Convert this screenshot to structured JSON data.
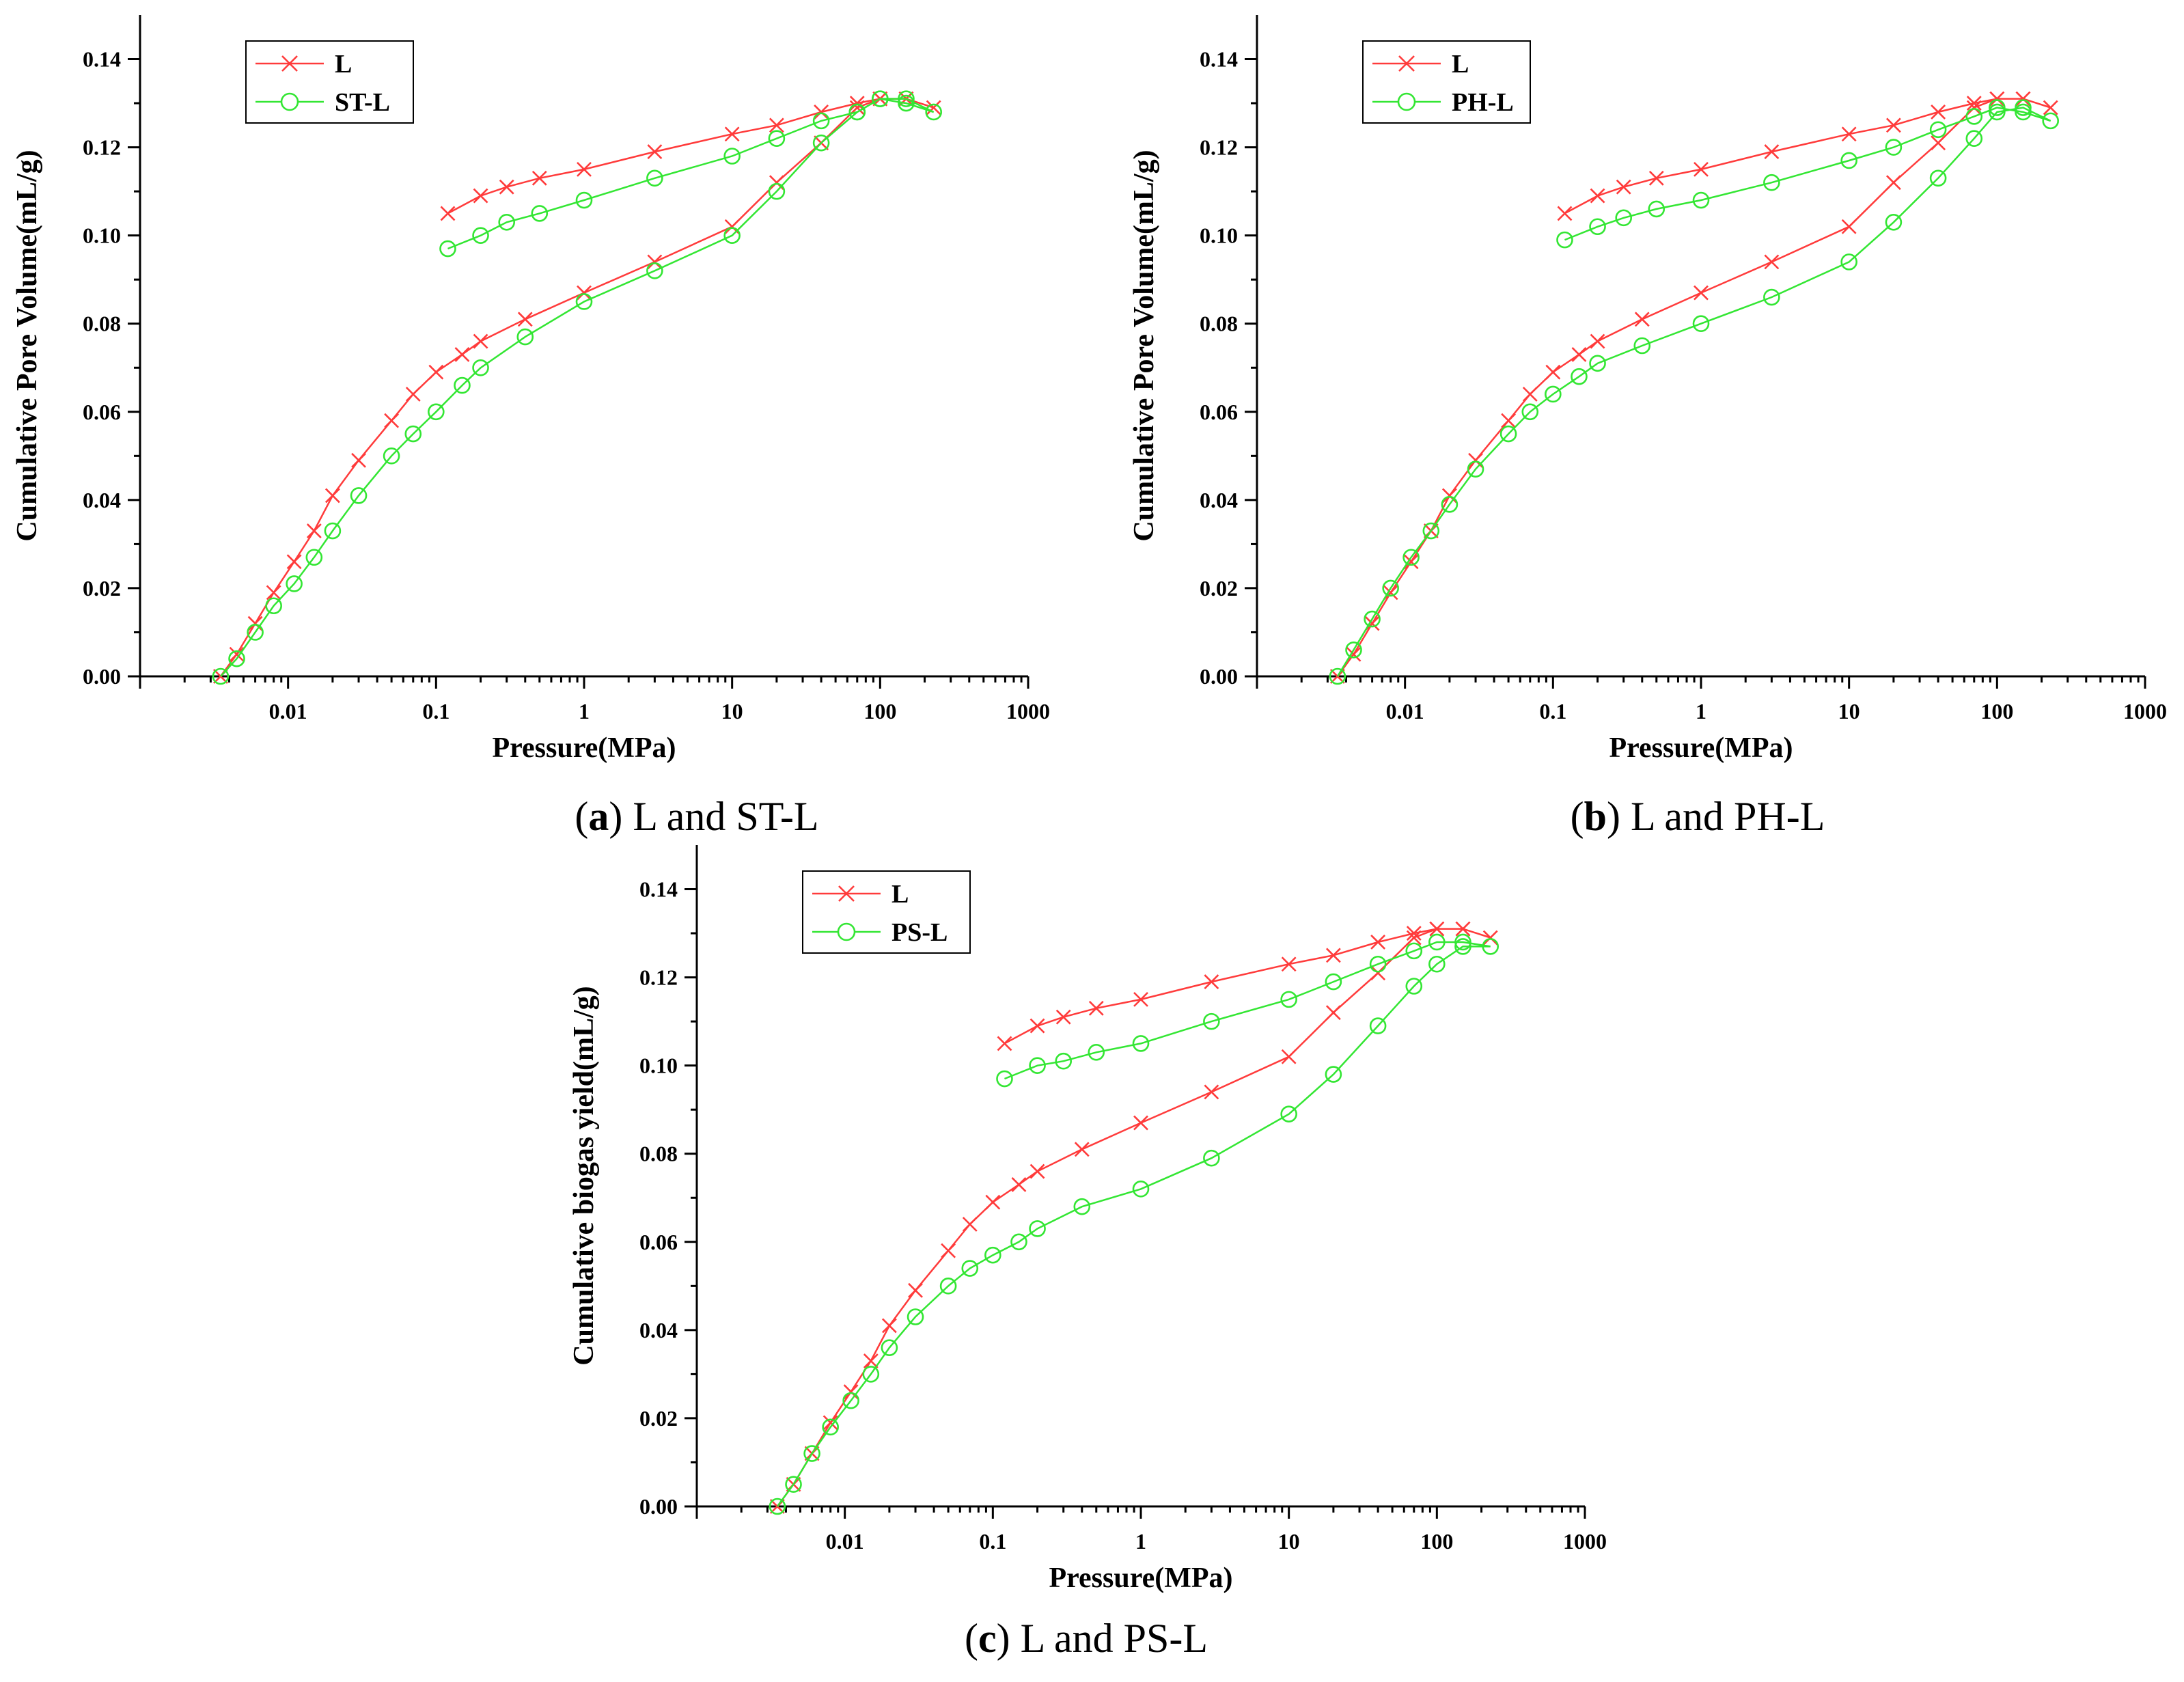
{
  "colors": {
    "L": "#ff3b3b",
    "secondary": "#33e633",
    "axis": "#000000"
  },
  "chart_data": [
    {
      "id": "a",
      "type": "scatter",
      "caption_letter": "a",
      "caption_text": " L and ST-L",
      "xlabel": "Pressure(MPa)",
      "ylabel": "Cumulative Pore Volume(mL/g)",
      "xscale": "log",
      "xlim": [
        0.001,
        1000
      ],
      "ylim": [
        0,
        0.15
      ],
      "xticks": [
        "0.01",
        "0.1",
        "1",
        "10",
        "100",
        "1000"
      ],
      "yticks": [
        "0.00",
        "0.02",
        "0.04",
        "0.06",
        "0.08",
        "0.10",
        "0.12",
        "0.14"
      ],
      "legend": [
        "L",
        "ST-L"
      ],
      "legend_position": "top-left",
      "series": [
        {
          "name": "L",
          "marker": "x",
          "intrusion": [
            [
              0.0035,
              0
            ],
            [
              0.0045,
              0.005
            ],
            [
              0.006,
              0.012
            ],
            [
              0.008,
              0.019
            ],
            [
              0.011,
              0.026
            ],
            [
              0.015,
              0.033
            ],
            [
              0.02,
              0.041
            ],
            [
              0.03,
              0.049
            ],
            [
              0.05,
              0.058
            ],
            [
              0.07,
              0.064
            ],
            [
              0.1,
              0.069
            ],
            [
              0.15,
              0.073
            ],
            [
              0.2,
              0.076
            ],
            [
              0.4,
              0.081
            ],
            [
              1,
              0.087
            ],
            [
              3,
              0.094
            ],
            [
              10,
              0.102
            ],
            [
              20,
              0.112
            ],
            [
              40,
              0.121
            ],
            [
              70,
              0.129
            ],
            [
              100,
              0.131
            ],
            [
              150,
              0.131
            ],
            [
              230,
              0.129
            ]
          ],
          "extrusion": [
            [
              230,
              0.129
            ],
            [
              150,
              0.131
            ],
            [
              100,
              0.131
            ],
            [
              70,
              0.13
            ],
            [
              40,
              0.128
            ],
            [
              20,
              0.125
            ],
            [
              10,
              0.123
            ],
            [
              3,
              0.119
            ],
            [
              1,
              0.115
            ],
            [
              0.5,
              0.113
            ],
            [
              0.3,
              0.111
            ],
            [
              0.2,
              0.109
            ],
            [
              0.12,
              0.105
            ]
          ]
        },
        {
          "name": "ST-L",
          "marker": "o",
          "intrusion": [
            [
              0.0035,
              0
            ],
            [
              0.0045,
              0.004
            ],
            [
              0.006,
              0.01
            ],
            [
              0.008,
              0.016
            ],
            [
              0.011,
              0.021
            ],
            [
              0.015,
              0.027
            ],
            [
              0.02,
              0.033
            ],
            [
              0.03,
              0.041
            ],
            [
              0.05,
              0.05
            ],
            [
              0.07,
              0.055
            ],
            [
              0.1,
              0.06
            ],
            [
              0.15,
              0.066
            ],
            [
              0.2,
              0.07
            ],
            [
              0.4,
              0.077
            ],
            [
              1,
              0.085
            ],
            [
              3,
              0.092
            ],
            [
              10,
              0.1
            ],
            [
              20,
              0.11
            ],
            [
              40,
              0.121
            ],
            [
              70,
              0.128
            ],
            [
              100,
              0.131
            ],
            [
              150,
              0.131
            ],
            [
              230,
              0.128
            ]
          ],
          "extrusion": [
            [
              230,
              0.128
            ],
            [
              150,
              0.13
            ],
            [
              100,
              0.131
            ],
            [
              70,
              0.128
            ],
            [
              40,
              0.126
            ],
            [
              20,
              0.122
            ],
            [
              10,
              0.118
            ],
            [
              3,
              0.113
            ],
            [
              1,
              0.108
            ],
            [
              0.5,
              0.105
            ],
            [
              0.3,
              0.103
            ],
            [
              0.2,
              0.1
            ],
            [
              0.12,
              0.097
            ]
          ]
        }
      ]
    },
    {
      "id": "b",
      "type": "scatter",
      "caption_letter": "b",
      "caption_text": " L and PH-L",
      "xlabel": "Pressure(MPa)",
      "ylabel": "Cumulative Pore Volume(mL/g)",
      "xscale": "log",
      "xlim": [
        0.001,
        1000
      ],
      "ylim": [
        0,
        0.15
      ],
      "xticks": [
        "0.01",
        "0.1",
        "1",
        "10",
        "100",
        "1000"
      ],
      "yticks": [
        "0.00",
        "0.02",
        "0.04",
        "0.06",
        "0.08",
        "0.10",
        "0.12",
        "0.14"
      ],
      "legend": [
        "L",
        "PH-L"
      ],
      "legend_position": "top-left",
      "series": [
        {
          "name": "L",
          "marker": "x",
          "intrusion": [
            [
              0.0035,
              0
            ],
            [
              0.0045,
              0.005
            ],
            [
              0.006,
              0.012
            ],
            [
              0.008,
              0.019
            ],
            [
              0.011,
              0.026
            ],
            [
              0.015,
              0.033
            ],
            [
              0.02,
              0.041
            ],
            [
              0.03,
              0.049
            ],
            [
              0.05,
              0.058
            ],
            [
              0.07,
              0.064
            ],
            [
              0.1,
              0.069
            ],
            [
              0.15,
              0.073
            ],
            [
              0.2,
              0.076
            ],
            [
              0.4,
              0.081
            ],
            [
              1,
              0.087
            ],
            [
              3,
              0.094
            ],
            [
              10,
              0.102
            ],
            [
              20,
              0.112
            ],
            [
              40,
              0.121
            ],
            [
              70,
              0.129
            ],
            [
              100,
              0.131
            ],
            [
              150,
              0.131
            ],
            [
              230,
              0.129
            ]
          ],
          "extrusion": [
            [
              230,
              0.129
            ],
            [
              150,
              0.131
            ],
            [
              100,
              0.131
            ],
            [
              70,
              0.13
            ],
            [
              40,
              0.128
            ],
            [
              20,
              0.125
            ],
            [
              10,
              0.123
            ],
            [
              3,
              0.119
            ],
            [
              1,
              0.115
            ],
            [
              0.5,
              0.113
            ],
            [
              0.3,
              0.111
            ],
            [
              0.2,
              0.109
            ],
            [
              0.12,
              0.105
            ]
          ]
        },
        {
          "name": "PH-L",
          "marker": "o",
          "intrusion": [
            [
              0.0035,
              0
            ],
            [
              0.0045,
              0.006
            ],
            [
              0.006,
              0.013
            ],
            [
              0.008,
              0.02
            ],
            [
              0.011,
              0.027
            ],
            [
              0.015,
              0.033
            ],
            [
              0.02,
              0.039
            ],
            [
              0.03,
              0.047
            ],
            [
              0.05,
              0.055
            ],
            [
              0.07,
              0.06
            ],
            [
              0.1,
              0.064
            ],
            [
              0.15,
              0.068
            ],
            [
              0.2,
              0.071
            ],
            [
              0.4,
              0.075
            ],
            [
              1,
              0.08
            ],
            [
              3,
              0.086
            ],
            [
              10,
              0.094
            ],
            [
              20,
              0.103
            ],
            [
              40,
              0.113
            ],
            [
              70,
              0.122
            ],
            [
              100,
              0.128
            ],
            [
              150,
              0.129
            ],
            [
              230,
              0.126
            ]
          ],
          "extrusion": [
            [
              230,
              0.126
            ],
            [
              150,
              0.128
            ],
            [
              100,
              0.129
            ],
            [
              70,
              0.127
            ],
            [
              40,
              0.124
            ],
            [
              20,
              0.12
            ],
            [
              10,
              0.117
            ],
            [
              3,
              0.112
            ],
            [
              1,
              0.108
            ],
            [
              0.5,
              0.106
            ],
            [
              0.3,
              0.104
            ],
            [
              0.2,
              0.102
            ],
            [
              0.12,
              0.099
            ]
          ]
        }
      ]
    },
    {
      "id": "c",
      "type": "scatter",
      "caption_letter": "c",
      "caption_text": " L and PS-L",
      "xlabel": "Pressure(MPa)",
      "ylabel": "Cumulative biogas yield(mL/g)",
      "xscale": "log",
      "xlim": [
        0.001,
        1000
      ],
      "ylim": [
        0,
        0.15
      ],
      "xticks": [
        "0.01",
        "0.1",
        "1",
        "10",
        "100",
        "1000"
      ],
      "yticks": [
        "0.00",
        "0.02",
        "0.04",
        "0.06",
        "0.08",
        "0.10",
        "0.12",
        "0.14"
      ],
      "legend": [
        "L",
        "PS-L"
      ],
      "legend_position": "top-left",
      "series": [
        {
          "name": "L",
          "marker": "x",
          "intrusion": [
            [
              0.0035,
              0
            ],
            [
              0.0045,
              0.005
            ],
            [
              0.006,
              0.012
            ],
            [
              0.008,
              0.019
            ],
            [
              0.011,
              0.026
            ],
            [
              0.015,
              0.033
            ],
            [
              0.02,
              0.041
            ],
            [
              0.03,
              0.049
            ],
            [
              0.05,
              0.058
            ],
            [
              0.07,
              0.064
            ],
            [
              0.1,
              0.069
            ],
            [
              0.15,
              0.073
            ],
            [
              0.2,
              0.076
            ],
            [
              0.4,
              0.081
            ],
            [
              1,
              0.087
            ],
            [
              3,
              0.094
            ],
            [
              10,
              0.102
            ],
            [
              20,
              0.112
            ],
            [
              40,
              0.121
            ],
            [
              70,
              0.129
            ],
            [
              100,
              0.131
            ],
            [
              150,
              0.131
            ],
            [
              230,
              0.129
            ]
          ],
          "extrusion": [
            [
              230,
              0.129
            ],
            [
              150,
              0.131
            ],
            [
              100,
              0.131
            ],
            [
              70,
              0.13
            ],
            [
              40,
              0.128
            ],
            [
              20,
              0.125
            ],
            [
              10,
              0.123
            ],
            [
              3,
              0.119
            ],
            [
              1,
              0.115
            ],
            [
              0.5,
              0.113
            ],
            [
              0.3,
              0.111
            ],
            [
              0.2,
              0.109
            ],
            [
              0.12,
              0.105
            ]
          ]
        },
        {
          "name": "PS-L",
          "marker": "o",
          "intrusion": [
            [
              0.0035,
              0
            ],
            [
              0.0045,
              0.005
            ],
            [
              0.006,
              0.012
            ],
            [
              0.008,
              0.018
            ],
            [
              0.011,
              0.024
            ],
            [
              0.015,
              0.03
            ],
            [
              0.02,
              0.036
            ],
            [
              0.03,
              0.043
            ],
            [
              0.05,
              0.05
            ],
            [
              0.07,
              0.054
            ],
            [
              0.1,
              0.057
            ],
            [
              0.15,
              0.06
            ],
            [
              0.2,
              0.063
            ],
            [
              0.4,
              0.068
            ],
            [
              1,
              0.072
            ],
            [
              3,
              0.079
            ],
            [
              10,
              0.089
            ],
            [
              20,
              0.098
            ],
            [
              40,
              0.109
            ],
            [
              70,
              0.118
            ],
            [
              100,
              0.123
            ],
            [
              150,
              0.127
            ],
            [
              230,
              0.127
            ]
          ],
          "extrusion": [
            [
              230,
              0.127
            ],
            [
              150,
              0.128
            ],
            [
              100,
              0.128
            ],
            [
              70,
              0.126
            ],
            [
              40,
              0.123
            ],
            [
              20,
              0.119
            ],
            [
              10,
              0.115
            ],
            [
              3,
              0.11
            ],
            [
              1,
              0.105
            ],
            [
              0.5,
              0.103
            ],
            [
              0.3,
              0.101
            ],
            [
              0.2,
              0.1
            ],
            [
              0.12,
              0.097
            ]
          ]
        }
      ]
    }
  ]
}
